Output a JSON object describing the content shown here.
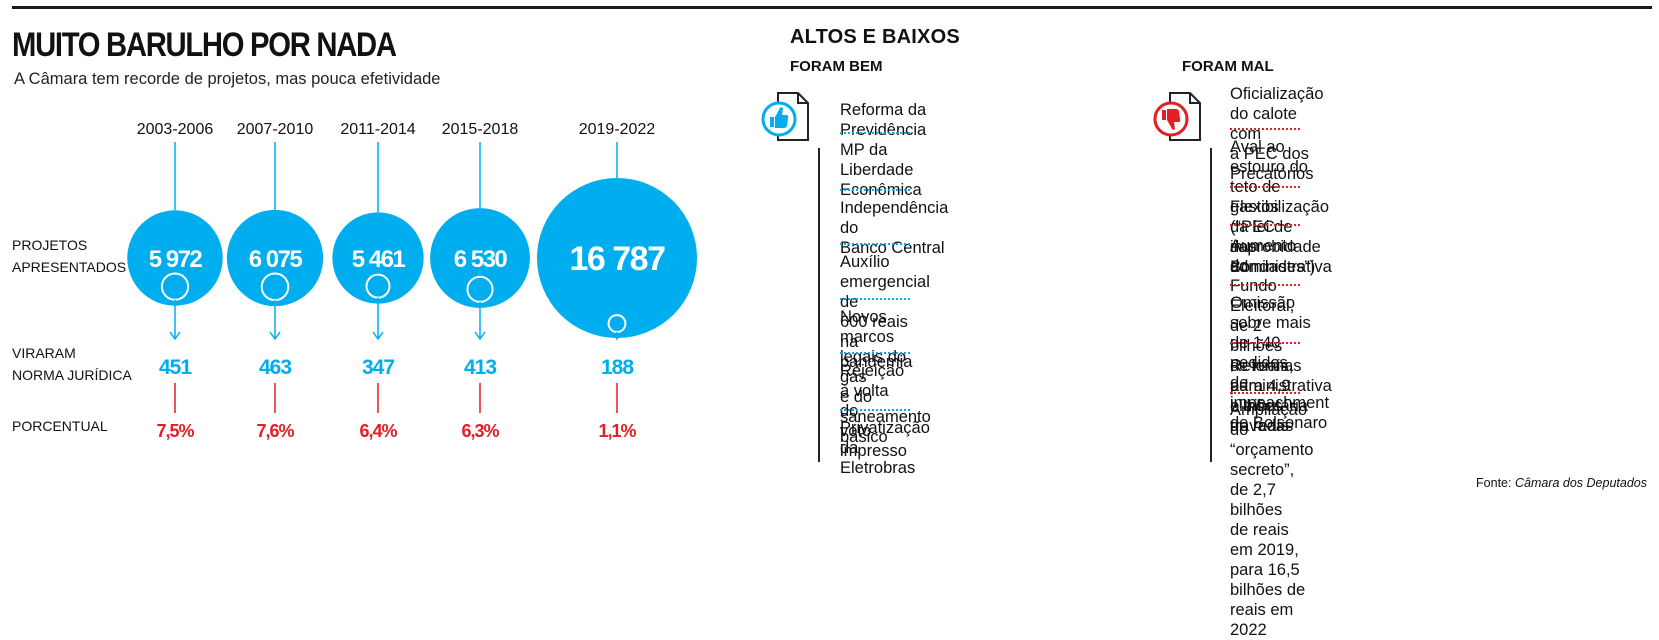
{
  "title": "MUITO BARULHO POR NADA",
  "subtitle": "A Câmara tem recorde de projetos, mas pouca efetividade",
  "chart_data": {
    "type": "bubble",
    "categories": [
      "2003-2006",
      "2007-2010",
      "2011-2014",
      "2015-2018",
      "2019-2022"
    ],
    "row_labels": {
      "presented": "PROJETOS\nAPRESENTADOS",
      "enacted": "VIRARAM\nNORMA JURÍDICA",
      "percent": "PORCENTUAL"
    },
    "presented": [
      5972,
      6075,
      5461,
      6530,
      16787
    ],
    "presented_labels": [
      "5 972",
      "6 075",
      "5 461",
      "6 530",
      "16 787"
    ],
    "enacted": [
      451,
      463,
      347,
      413,
      188
    ],
    "enacted_labels": [
      "451",
      "463",
      "347",
      "413",
      "188"
    ],
    "percent": [
      7.5,
      7.6,
      6.4,
      6.3,
      1.1
    ],
    "percent_labels": [
      "7,5%",
      "7,6%",
      "6,4%",
      "6,3%",
      "1,1%"
    ],
    "colors": {
      "bubble": "#00aeef",
      "enacted": "#00aeef",
      "percent": "#e31e24",
      "line_top": "#00aeef",
      "line_bottom": "#e31e24"
    }
  },
  "highs_lows": {
    "title": "ALTOS E BAIXOS",
    "good": {
      "label": "FORAM BEM",
      "icon": "thumbs-up-icon",
      "color": "#00aeef",
      "items": [
        "Reforma da Previdência",
        "MP da Liberdade\nEconômica",
        "Independência do\nBanco Central",
        "Auxílio emergencial de\n600 reais na pandemia",
        "Novos marcos legais do gás\ne do saneamento básico",
        "Rejeição à volta do\nvoto impresso",
        "Privatização da Eletrobras"
      ]
    },
    "bad": {
      "label": "FORAM MAL",
      "icon": "thumbs-down-icon",
      "color": "#e31e24",
      "items": [
        "Oficialização do calote com\na PEC dos Precatórios",
        "Aval ao estouro do teto de gastos (“PEC\ndas Bondades”)",
        "Flexibilização da lei de improbidade administrativa",
        "Aumento do Fundo Eleitoral, de 2 bilhões\nde reais, para 4,9 bilhões de reais",
        "Omissão sobre mais de 140 pedidos\nde impeachment de Bolsonaro",
        "Reformas administrativa e tributária travadas",
        "Ampliação do “orçamento secreto”, de 2,7 bilhões\nde reais em 2019, para 16,5 bilhões de reais em 2022"
      ]
    }
  },
  "source": {
    "prefix": "Fonte: ",
    "name": "Câmara dos Deputados"
  }
}
